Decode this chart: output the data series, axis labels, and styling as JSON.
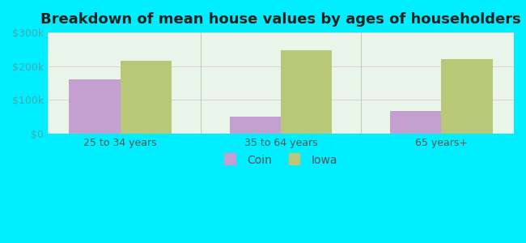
{
  "title": "Breakdown of mean house values by ages of householders",
  "categories": [
    "25 to 34 years",
    "35 to 64 years",
    "65 years+"
  ],
  "coin_values": [
    160000,
    50000,
    67000
  ],
  "iowa_values": [
    215000,
    248000,
    222000
  ],
  "ylim": [
    0,
    300000
  ],
  "yticks": [
    0,
    100000,
    200000,
    300000
  ],
  "ytick_labels": [
    "$0",
    "$100k",
    "$200k",
    "$300k"
  ],
  "coin_color": "#c4a0d0",
  "iowa_color": "#b8c878",
  "outer_bg_color": "#00eeff",
  "plot_bg_top": "#e8f5e8",
  "plot_bg_bottom": "#f8fff8",
  "legend_labels": [
    "Coin",
    "Iowa"
  ],
  "bar_width": 0.32,
  "title_fontsize": 13,
  "tick_fontsize": 9,
  "legend_fontsize": 10,
  "ytick_color": "#44aaaa",
  "xtick_color": "#555555"
}
